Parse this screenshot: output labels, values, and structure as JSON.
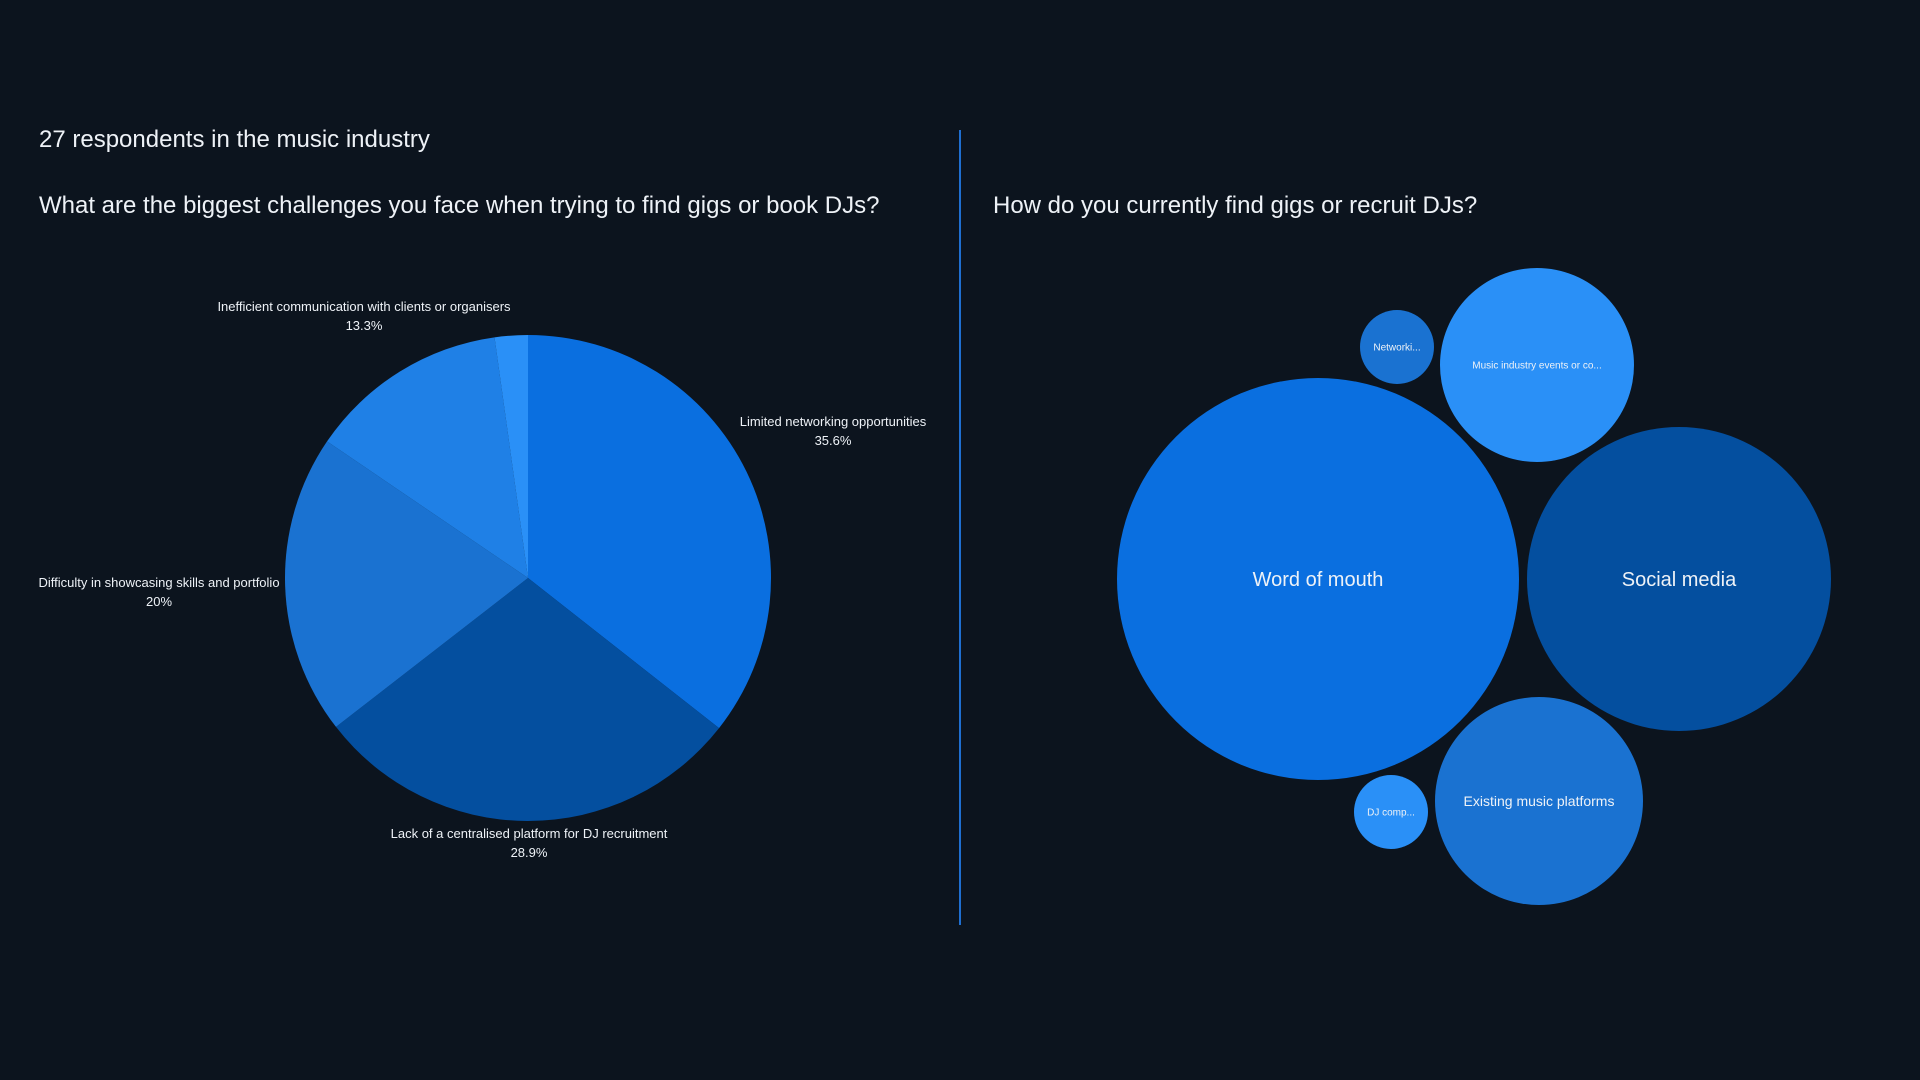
{
  "header": {
    "respondents": "27 respondents in the music industry"
  },
  "colors": {
    "background": "#0c141e",
    "divider": "#1f6fd1"
  },
  "chart_data": [
    {
      "type": "pie",
      "title": "What are the biggest challenges you face when trying to find gigs or book DJs?",
      "slices": [
        {
          "label": "Limited networking opportunities",
          "value_text": "35.6%",
          "value": 35.6,
          "color": "#0a6fe0"
        },
        {
          "label": "Lack of a centralised platform for DJ recruitment",
          "value_text": "28.9%",
          "value": 28.9,
          "color": "#044f9f"
        },
        {
          "label": "Difficulty in showcasing skills and portfolio",
          "value_text": "20%",
          "value": 20.0,
          "color": "#1a72d1"
        },
        {
          "label": "Inefficient communication with clients or organisers",
          "value_text": "13.3%",
          "value": 13.3,
          "color": "#1f80e6"
        },
        {
          "label": "",
          "value_text": "",
          "value": 2.2,
          "color": "#2a90f7"
        }
      ]
    },
    {
      "type": "bubble",
      "title": "How do you currently find gigs or recruit DJs?",
      "bubbles": [
        {
          "label": "Word of mouth",
          "relative_size": 1.0,
          "color": "#0a6fe0"
        },
        {
          "label": "Social media",
          "relative_size": 0.75,
          "color": "#044f9f"
        },
        {
          "label": "Existing music platforms",
          "relative_size": 0.52,
          "color": "#1a72d1"
        },
        {
          "label": "Music industry events or co...",
          "relative_size": 0.48,
          "color": "#2a90f7"
        },
        {
          "label": "Networki...",
          "relative_size": 0.18,
          "color": "#1a72d1"
        },
        {
          "label": "DJ comp...",
          "relative_size": 0.18,
          "color": "#2a90f7"
        }
      ]
    }
  ]
}
